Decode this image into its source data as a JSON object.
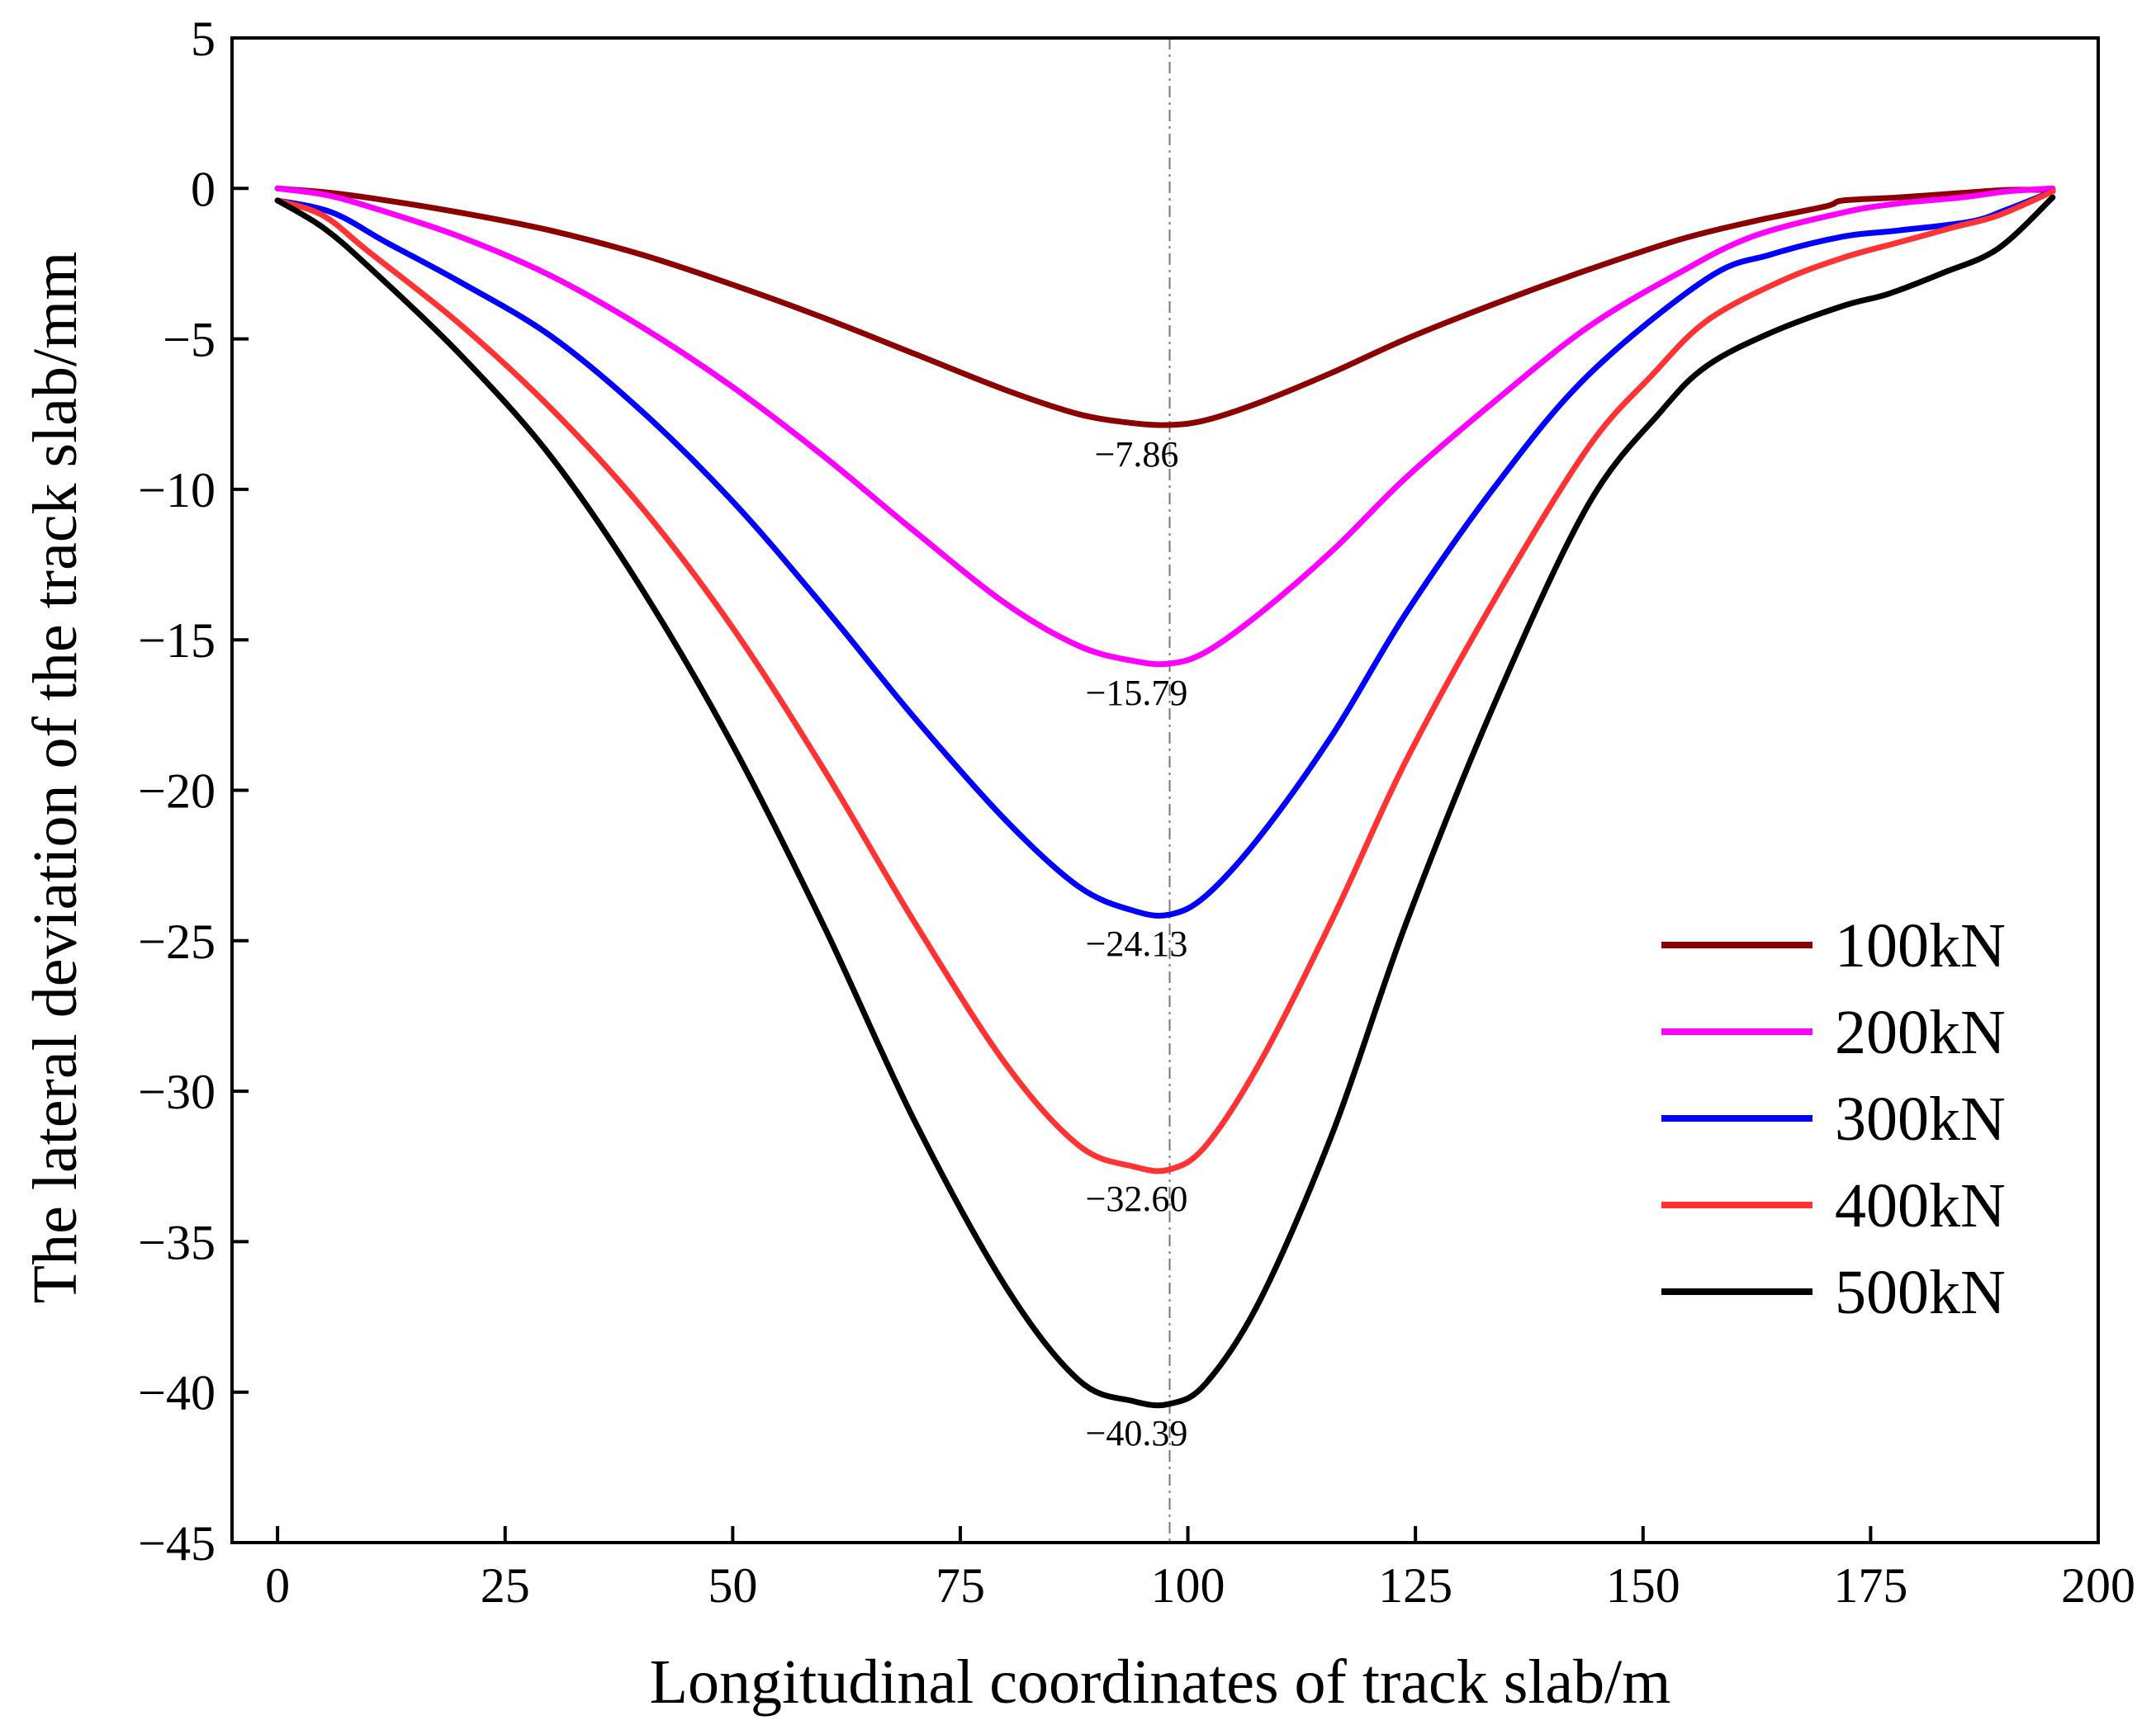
{
  "chart_data": {
    "type": "line",
    "title": "",
    "xlabel": "Longitudinal coordinates of track slab/m",
    "ylabel": "The lateral deviation of the track slab/mm",
    "xlim": [
      -5,
      200
    ],
    "ylim": [
      -45,
      5
    ],
    "xticks": [
      0,
      25,
      50,
      75,
      100,
      125,
      150,
      175,
      200
    ],
    "yticks": [
      5,
      0,
      -5,
      -10,
      -15,
      -20,
      -25,
      -30,
      -35,
      -40,
      -45
    ],
    "xtick_labels": [
      "0",
      "25",
      "50",
      "75",
      "100",
      "125",
      "150",
      "175",
      "200"
    ],
    "ytick_labels": [
      "5",
      "0",
      "−5",
      "−10",
      "−15",
      "−20",
      "−25",
      "−30",
      "−35",
      "−40",
      "−45"
    ],
    "reference_line_x": 98,
    "legend_position": "right",
    "series": [
      {
        "name": "100kN",
        "color": "#8b0000",
        "min_label": "−7.86",
        "min_value": -7.86,
        "x": [
          0,
          6,
          12,
          20,
          30,
          40,
          50,
          60,
          70,
          80,
          88,
          94,
          98,
          102,
          108,
          116,
          124,
          134,
          144,
          154,
          162,
          170,
          172,
          178,
          185,
          190,
          195
        ],
        "y": [
          0,
          -0.15,
          -0.4,
          -0.8,
          -1.4,
          -2.2,
          -3.2,
          -4.3,
          -5.5,
          -6.7,
          -7.5,
          -7.8,
          -7.86,
          -7.7,
          -7.1,
          -6.1,
          -5.0,
          -3.8,
          -2.7,
          -1.7,
          -1.1,
          -0.6,
          -0.4,
          -0.3,
          -0.15,
          -0.05,
          -0.05
        ]
      },
      {
        "name": "200kN",
        "color": "#ff00ff",
        "min_label": "−15.79",
        "min_value": -15.79,
        "x": [
          0,
          5,
          10,
          20,
          30,
          40,
          50,
          60,
          70,
          80,
          88,
          94,
          98,
          102,
          108,
          116,
          124,
          134,
          144,
          154,
          162,
          172,
          178,
          185,
          190,
          195
        ],
        "y": [
          0,
          -0.2,
          -0.6,
          -1.6,
          -2.9,
          -4.6,
          -6.6,
          -8.9,
          -11.4,
          -13.8,
          -15.2,
          -15.7,
          -15.79,
          -15.4,
          -14.1,
          -12.0,
          -9.6,
          -7.0,
          -4.6,
          -2.8,
          -1.6,
          -0.8,
          -0.5,
          -0.3,
          -0.1,
          0
        ]
      },
      {
        "name": "300kN",
        "color": "#0000ff",
        "min_label": "−24.13",
        "min_value": -24.13,
        "x": [
          0,
          6,
          12,
          20,
          30,
          40,
          50,
          60,
          70,
          80,
          88,
          94,
          98,
          102,
          108,
          116,
          124,
          134,
          144,
          157,
          164,
          172,
          178,
          186,
          190,
          195
        ],
        "y": [
          -0.4,
          -0.8,
          -1.8,
          -3.1,
          -4.9,
          -7.4,
          -10.4,
          -13.9,
          -17.6,
          -21.0,
          -23.2,
          -24.0,
          -24.13,
          -23.5,
          -21.5,
          -18.1,
          -14.1,
          -9.8,
          -6.2,
          -3.0,
          -2.2,
          -1.6,
          -1.4,
          -1.1,
          -0.7,
          -0.1
        ]
      },
      {
        "name": "400kN",
        "color": "#ff3333",
        "min_label": "−32.60",
        "min_value": -32.6,
        "x": [
          0,
          5,
          10,
          20,
          30,
          40,
          50,
          60,
          70,
          80,
          88,
          94,
          98,
          102,
          108,
          116,
          124,
          134,
          144,
          151,
          157,
          165,
          172,
          178,
          184,
          189,
          195
        ],
        "y": [
          -0.4,
          -0.9,
          -2.1,
          -4.5,
          -7.3,
          -10.6,
          -14.6,
          -19.3,
          -24.4,
          -29.1,
          -31.8,
          -32.5,
          -32.6,
          -31.8,
          -29.0,
          -24.2,
          -19.0,
          -13.5,
          -8.6,
          -6.2,
          -4.4,
          -3.1,
          -2.3,
          -1.8,
          -1.3,
          -0.9,
          -0.1
        ]
      },
      {
        "name": "500kN",
        "color": "#000000",
        "min_label": "−40.39",
        "min_value": -40.39,
        "x": [
          0,
          5,
          10,
          20,
          30,
          40,
          50,
          60,
          70,
          80,
          88,
          94,
          98,
          102,
          108,
          116,
          124,
          134,
          144,
          152,
          157,
          164,
          172,
          177,
          183,
          189,
          195
        ],
        "y": [
          -0.4,
          -1.3,
          -2.6,
          -5.5,
          -8.9,
          -13.3,
          -18.5,
          -24.5,
          -31.0,
          -36.5,
          -39.6,
          -40.3,
          -40.39,
          -39.7,
          -36.9,
          -31.3,
          -24.4,
          -16.9,
          -10.5,
          -7.4,
          -5.9,
          -4.8,
          -3.9,
          -3.5,
          -2.8,
          -2.0,
          -0.3
        ]
      }
    ]
  }
}
